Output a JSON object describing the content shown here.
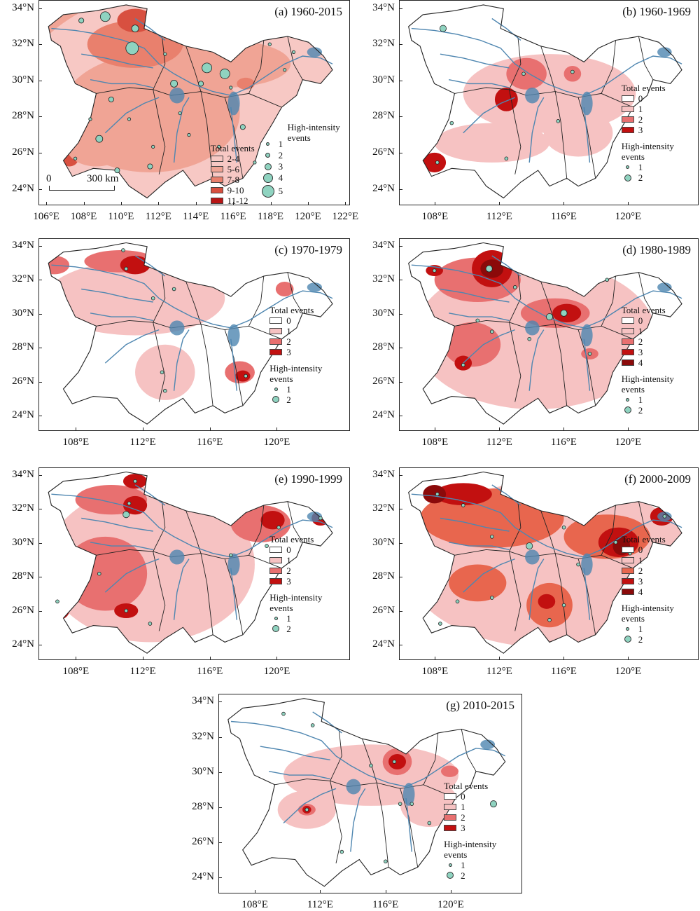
{
  "colors": {
    "region_fill": "#ffffff",
    "boundary": "#222222",
    "river": "#4e86b0",
    "circle_fill": "#8fd3c0",
    "class_1": "#f6c2c2",
    "class_2": "#e87070",
    "class_3": "#c21010",
    "class_4": "#8b0a0a",
    "a_class_1": "#f7c8c4",
    "a_class_2": "#f0a495",
    "a_class_3": "#e9806d",
    "a_class_4": "#d85040",
    "a_class_5": "#b81515",
    "f_class_2": "#e8664e"
  },
  "axes": {
    "y_labels": [
      "34°N",
      "32°N",
      "30°N",
      "28°N",
      "26°N",
      "24°N"
    ],
    "x_labels_a": [
      "106°E",
      "108°E",
      "110°E",
      "112°E",
      "114°E",
      "116°E",
      "118°E",
      "120°E",
      "122°E"
    ],
    "x_labels_other": [
      "108°E",
      "112°E",
      "116°E",
      "120°E"
    ]
  },
  "scale_bar": {
    "start": "0",
    "end": "300 km"
  },
  "legend_common": {
    "total_title": "Total events",
    "high_title_line1": "High-intensity",
    "high_title_line2": "events"
  },
  "panels": [
    {
      "id": "a",
      "title": "(a) 1960-2015",
      "total_classes": [
        "2-4",
        "5-6",
        "7-8",
        "9-10",
        "11-12"
      ],
      "high_classes": [
        "1",
        "2",
        "3",
        "4",
        "5"
      ]
    },
    {
      "id": "b",
      "title": "(b) 1960-1969",
      "total_classes": [
        "0",
        "1",
        "2",
        "3"
      ],
      "high_classes": [
        "1",
        "2"
      ]
    },
    {
      "id": "c",
      "title": "(c) 1970-1979",
      "total_classes": [
        "0",
        "1",
        "2",
        "3"
      ],
      "high_classes": [
        "1",
        "2"
      ]
    },
    {
      "id": "d",
      "title": "(d) 1980-1989",
      "total_classes": [
        "0",
        "1",
        "2",
        "3",
        "4"
      ],
      "high_classes": [
        "1",
        "2"
      ]
    },
    {
      "id": "e",
      "title": "(e) 1990-1999",
      "total_classes": [
        "0",
        "1",
        "2",
        "3"
      ],
      "high_classes": [
        "1",
        "2"
      ]
    },
    {
      "id": "f",
      "title": "(f) 2000-2009",
      "total_classes": [
        "0",
        "1",
        "2",
        "3",
        "4"
      ],
      "high_classes": [
        "1",
        "2"
      ]
    },
    {
      "id": "g",
      "title": "(g) 2010-2015",
      "total_classes": [
        "0",
        "1",
        "2",
        "3"
      ],
      "high_classes": [
        "1",
        "2"
      ]
    }
  ]
}
